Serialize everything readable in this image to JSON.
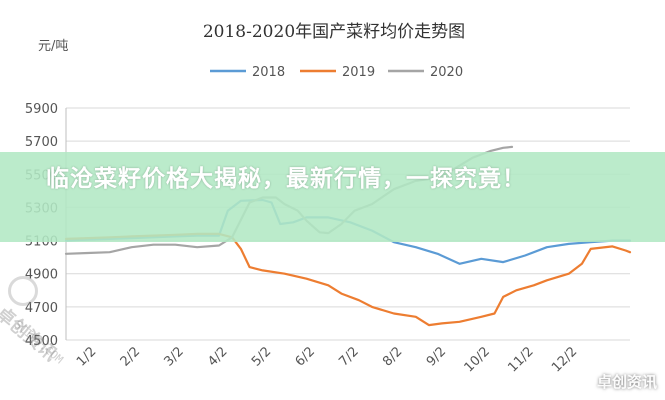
{
  "chart_data": {
    "type": "line",
    "title": "2018-2020年国产菜籽均价走势图",
    "ylabel": "元/吨",
    "ylim": [
      4500,
      5900
    ],
    "yticks": [
      4500,
      4700,
      4900,
      5100,
      5300,
      5500,
      5700,
      5900
    ],
    "categories": [
      "1/2",
      "2/2",
      "3/2",
      "4/2",
      "5/2",
      "6/2",
      "7/2",
      "8/2",
      "9/2",
      "10/2",
      "11/2",
      "12/2"
    ],
    "grid": true,
    "legend_position": "top",
    "series": [
      {
        "name": "2018",
        "color": "#5b9bd5",
        "points": [
          [
            0,
            5100
          ],
          [
            0.5,
            5105
          ],
          [
            1,
            5110
          ],
          [
            1.5,
            5115
          ],
          [
            2,
            5120
          ],
          [
            2.5,
            5125
          ],
          [
            3,
            5130
          ],
          [
            3.5,
            5130
          ],
          [
            3.7,
            5280
          ],
          [
            4,
            5340
          ],
          [
            4.5,
            5345
          ],
          [
            4.7,
            5330
          ],
          [
            4.9,
            5200
          ],
          [
            5.2,
            5210
          ],
          [
            5.5,
            5240
          ],
          [
            6,
            5240
          ],
          [
            6.5,
            5210
          ],
          [
            7,
            5160
          ],
          [
            7.5,
            5090
          ],
          [
            8,
            5060
          ],
          [
            8.5,
            5020
          ],
          [
            9,
            4960
          ],
          [
            9.5,
            4990
          ],
          [
            10,
            4970
          ],
          [
            10.5,
            5010
          ],
          [
            11,
            5060
          ],
          [
            11.5,
            5080
          ],
          [
            12,
            5090
          ],
          [
            12.5,
            5100
          ],
          [
            12.9,
            5100
          ]
        ]
      },
      {
        "name": "2019",
        "color": "#ed7d31",
        "points": [
          [
            0,
            5110
          ],
          [
            0.5,
            5115
          ],
          [
            1,
            5120
          ],
          [
            1.5,
            5125
          ],
          [
            2,
            5130
          ],
          [
            2.5,
            5135
          ],
          [
            3,
            5140
          ],
          [
            3.5,
            5140
          ],
          [
            3.8,
            5120
          ],
          [
            4,
            5050
          ],
          [
            4.2,
            4940
          ],
          [
            4.5,
            4920
          ],
          [
            5,
            4900
          ],
          [
            5.5,
            4870
          ],
          [
            6,
            4830
          ],
          [
            6.3,
            4780
          ],
          [
            6.7,
            4740
          ],
          [
            7,
            4700
          ],
          [
            7.5,
            4660
          ],
          [
            8,
            4640
          ],
          [
            8.3,
            4590
          ],
          [
            8.6,
            4600
          ],
          [
            9,
            4610
          ],
          [
            9.5,
            4640
          ],
          [
            9.8,
            4660
          ],
          [
            10,
            4760
          ],
          [
            10.3,
            4800
          ],
          [
            10.7,
            4830
          ],
          [
            11,
            4860
          ],
          [
            11.5,
            4900
          ],
          [
            11.8,
            4960
          ],
          [
            12,
            5050
          ],
          [
            12.5,
            5065
          ],
          [
            12.8,
            5040
          ],
          [
            12.9,
            5030
          ]
        ]
      },
      {
        "name": "2020",
        "color": "#a5a5a5",
        "points": [
          [
            0,
            5020
          ],
          [
            0.5,
            5025
          ],
          [
            1,
            5030
          ],
          [
            1.5,
            5060
          ],
          [
            2,
            5075
          ],
          [
            2.5,
            5075
          ],
          [
            3,
            5060
          ],
          [
            3.5,
            5070
          ],
          [
            3.8,
            5120
          ],
          [
            4.2,
            5330
          ],
          [
            4.5,
            5360
          ],
          [
            4.8,
            5360
          ],
          [
            5,
            5320
          ],
          [
            5.3,
            5280
          ],
          [
            5.5,
            5220
          ],
          [
            5.8,
            5150
          ],
          [
            6,
            5145
          ],
          [
            6.3,
            5200
          ],
          [
            6.6,
            5280
          ],
          [
            7,
            5320
          ],
          [
            7.5,
            5410
          ],
          [
            8,
            5460
          ],
          [
            8.5,
            5480
          ],
          [
            8.8,
            5520
          ],
          [
            9.3,
            5600
          ],
          [
            9.7,
            5640
          ],
          [
            10,
            5660
          ],
          [
            10.2,
            5665
          ]
        ]
      }
    ]
  },
  "overlay": {
    "banner_text": "临沧菜籽价格大揭秘，最新行情，一探究竟！",
    "watermark_diagonal": "卓创资讯",
    "watermark_sub": "SCI99.COM",
    "watermark_corner": "卓创资讯"
  }
}
